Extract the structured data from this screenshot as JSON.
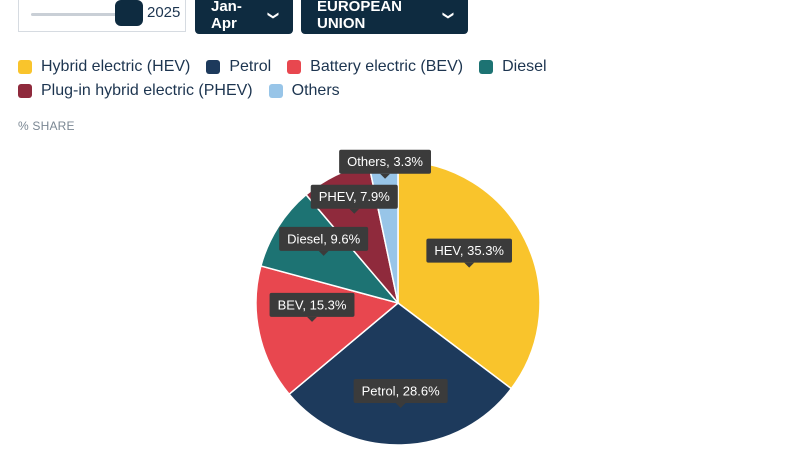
{
  "controls": {
    "year": "2025",
    "period": "Jan-Apr",
    "region": "EUROPEAN UNION",
    "slider_position": 1.0
  },
  "unit_label": "% SHARE",
  "chart_data": {
    "type": "pie",
    "title": "",
    "legend_position": "top-left",
    "slices": [
      {
        "label": "Hybrid electric (HEV)",
        "short": "HEV",
        "value": 35.3,
        "color": "#f9c42c"
      },
      {
        "label": "Petrol",
        "short": "Petrol",
        "value": 28.6,
        "color": "#1d3a5c"
      },
      {
        "label": "Battery electric (BEV)",
        "short": "BEV",
        "value": 15.3,
        "color": "#e8474f"
      },
      {
        "label": "Diesel",
        "short": "Diesel",
        "value": 9.6,
        "color": "#1d7373"
      },
      {
        "label": "Plug-in hybrid electric (PHEV)",
        "short": "PHEV",
        "value": 7.9,
        "color": "#8f2a3c"
      },
      {
        "label": "Others",
        "short": "Others",
        "value": 3.3,
        "color": "#98c5e8"
      }
    ]
  }
}
